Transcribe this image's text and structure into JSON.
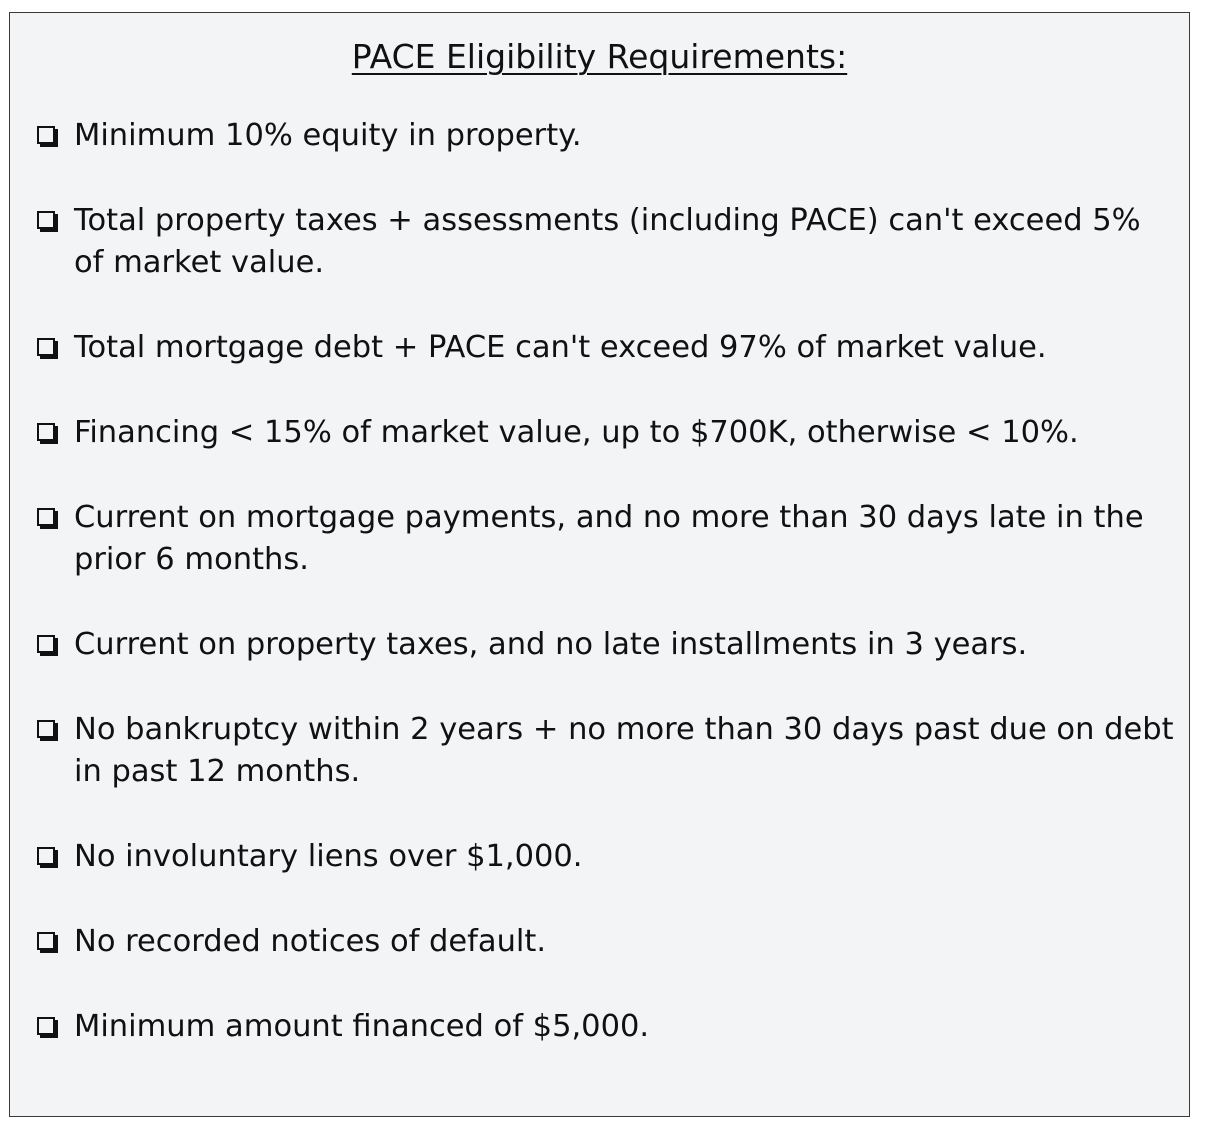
{
  "title": "PACE Eligibility Requirements:",
  "items": [
    {
      "label": "Minimum 10% equity in property."
    },
    {
      "label": "Total property taxes + assessments (including PACE) can't exceed 5% of market value."
    },
    {
      "label": "Total mortgage debt + PACE can't exceed 97% of market value."
    },
    {
      "label": "Financing < 15% of market value, up to $700K, otherwise < 10%."
    },
    {
      "label": "Current on mortgage payments, and no more than 30 days late in the prior 6 months."
    },
    {
      "label": "Current on property taxes, and no late installments in 3 years."
    },
    {
      "label": "No bankruptcy within 2 years + no more than 30 days past due on debt in past 12 months."
    },
    {
      "label": "No involuntary liens over $1,000."
    },
    {
      "label": "No recorded notices of default."
    },
    {
      "label": "Minimum amount financed of $5,000."
    }
  ]
}
